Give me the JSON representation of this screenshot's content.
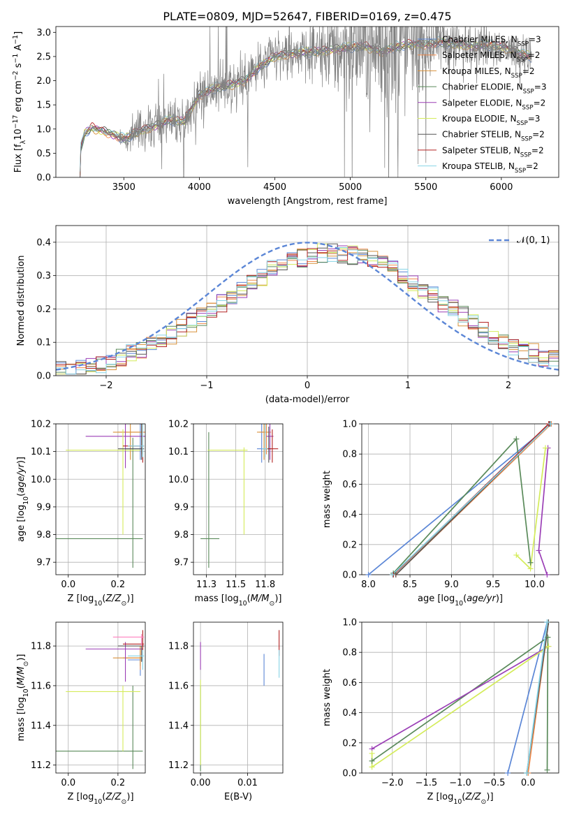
{
  "figure": {
    "title": "PLATE=0809, MJD=52647, FIBERID=0169, z=0.475"
  },
  "models": [
    {
      "label": "Chabrier MILES, N<sub>SSP</sub>=3",
      "color": "#5b86d6"
    },
    {
      "label": "Salpeter MILES, N<sub>SSP</sub>=2",
      "color": "#f08a4b"
    },
    {
      "label": "Kroupa MILES, N<sub>SSP</sub>=2",
      "color": "#d8913a"
    },
    {
      "label": "Chabrier ELODIE, N<sub>SSP</sub>=3",
      "color": "#5a8a5a"
    },
    {
      "label": "Salpeter ELODIE, N<sub>SSP</sub>=2",
      "color": "#9b3fb6"
    },
    {
      "label": "Kroupa ELODIE, N<sub>SSP</sub>=3",
      "color": "#d4ec5a"
    },
    {
      "label": "Chabrier STELIB, N<sub>SSP</sub>=2",
      "color": "#555555"
    },
    {
      "label": "Salpeter STELIB, N<sub>SSP</sub>=2",
      "color": "#b22222"
    },
    {
      "label": "Kroupa STELIB, N<sub>SSP</sub>=2",
      "color": "#87d4e6"
    }
  ],
  "chart_data": [
    {
      "id": "spectrum",
      "type": "line",
      "xlabel": "wavelength [Angstrom, rest frame]",
      "ylabel": "Flux [f<sub>λ</sub>10<sup>−17</sup> erg cm<sup>−2</sup> s<sup>−1</sup> A<sup>−1</sup>]",
      "xlim": [
        3050,
        6380
      ],
      "ylim": [
        0,
        3.12
      ],
      "xticks": [
        3500,
        4000,
        4500,
        5000,
        5500,
        6000
      ],
      "yticks": [
        0.0,
        0.5,
        1.0,
        1.5,
        2.0,
        2.5,
        3.0
      ],
      "data_color": "#808080",
      "x_range": [
        3210,
        6200
      ],
      "continuum_knots": [
        [
          3210,
          0.0
        ],
        [
          3215,
          0.6
        ],
        [
          3240,
          0.92
        ],
        [
          3290,
          1.02
        ],
        [
          3400,
          0.92
        ],
        [
          3500,
          0.8
        ],
        [
          3600,
          0.95
        ],
        [
          3700,
          1.05
        ],
        [
          3800,
          1.2
        ],
        [
          3900,
          1.15
        ],
        [
          4000,
          1.7
        ],
        [
          4100,
          1.85
        ],
        [
          4200,
          1.9
        ],
        [
          4300,
          2.0
        ],
        [
          4400,
          2.3
        ],
        [
          4500,
          2.5
        ],
        [
          4600,
          2.55
        ],
        [
          4700,
          2.6
        ],
        [
          4800,
          2.6
        ],
        [
          4900,
          2.65
        ],
        [
          5000,
          2.7
        ],
        [
          5100,
          2.7
        ],
        [
          5200,
          2.6
        ],
        [
          5300,
          2.7
        ],
        [
          5400,
          2.75
        ],
        [
          5500,
          2.75
        ],
        [
          5600,
          2.8
        ],
        [
          5700,
          2.75
        ],
        [
          5800,
          2.72
        ],
        [
          5900,
          2.75
        ],
        [
          6000,
          2.7
        ],
        [
          6100,
          2.6
        ],
        [
          6200,
          2.5
        ]
      ],
      "noise_knots": [
        [
          3210,
          0.02
        ],
        [
          3450,
          0.03
        ],
        [
          3550,
          0.3
        ],
        [
          3900,
          0.4
        ],
        [
          4000,
          0.35
        ],
        [
          4300,
          0.5
        ],
        [
          4700,
          0.3
        ],
        [
          4900,
          0.8
        ],
        [
          5300,
          1.2
        ],
        [
          5500,
          0.6
        ],
        [
          5800,
          0.3
        ],
        [
          6200,
          0.3
        ]
      ]
    },
    {
      "id": "residuals",
      "type": "histogram",
      "xlabel": "(data-model)/error",
      "ylabel": "Normed distribution",
      "xlim": [
        -2.5,
        2.5
      ],
      "ylim": [
        0,
        0.45
      ],
      "xticks": [
        -2,
        -1,
        0,
        1,
        2
      ],
      "yticks": [
        0.0,
        0.1,
        0.2,
        0.3,
        0.4
      ],
      "bins": [
        -2.5,
        2.5,
        50
      ],
      "reference": {
        "label": "𝒩(0, 1)",
        "color": "#5b86d6",
        "mean": 0,
        "sigma": 1
      }
    },
    {
      "id": "age-vs-Z",
      "type": "scatter",
      "xlabel": "Z [log<sub>10</sub>(<i>Z/Z</i><sub>⊙</sub>)]",
      "ylabel": "age  [log<sub>10</sub>(<i>age/yr</i>)]",
      "xlim": [
        -0.05,
        0.31
      ],
      "ylim": [
        9.655,
        10.2
      ],
      "xticks": [
        0.0,
        0.2
      ],
      "yticks": [
        9.7,
        9.8,
        9.9,
        10.0,
        10.1,
        10.2
      ],
      "points": [
        {
          "m": 0,
          "x": 0.29,
          "y": 10.11,
          "xlo": 0.23,
          "xhi": 0.3,
          "ylo": 10.07,
          "yhi": 10.2
        },
        {
          "m": 1,
          "x": 0.295,
          "y": 10.17,
          "xlo": 0.2,
          "xhi": 0.31,
          "ylo": 10.09,
          "yhi": 10.2
        },
        {
          "m": 2,
          "x": 0.25,
          "y": 10.17,
          "xlo": 0.18,
          "xhi": 0.3,
          "ylo": 10.07,
          "yhi": 10.2
        },
        {
          "m": 3,
          "x": 0.26,
          "y": 9.785,
          "xlo": -0.05,
          "xhi": 0.3,
          "ylo": 9.68,
          "yhi": 10.15
        },
        {
          "m": 4,
          "x": 0.23,
          "y": 10.155,
          "xlo": 0.07,
          "xhi": 0.31,
          "ylo": 10.04,
          "yhi": 10.2
        },
        {
          "m": 5,
          "x": 0.22,
          "y": 10.105,
          "xlo": -0.01,
          "xhi": 0.29,
          "ylo": 9.8,
          "yhi": 10.18
        },
        {
          "m": 6,
          "x": 0.295,
          "y": 10.11,
          "xlo": 0.2,
          "xhi": 0.305,
          "ylo": 10.07,
          "yhi": 10.2
        },
        {
          "m": 7,
          "x": 0.3,
          "y": 10.12,
          "xlo": 0.22,
          "xhi": 0.305,
          "ylo": 10.06,
          "yhi": 10.2
        },
        {
          "m": 8,
          "x": 0.3,
          "y": 10.12,
          "xlo": 0.24,
          "xhi": 0.305,
          "ylo": 10.08,
          "yhi": 10.2
        }
      ]
    },
    {
      "id": "age-vs-mass",
      "type": "scatter",
      "xlabel": "mass [log<sub>10</sub>(<i>M/M</i><sub>⊙</sub>)]",
      "ylabel": "",
      "xlim": [
        11.14,
        11.9
      ],
      "ylim": [
        9.655,
        10.2
      ],
      "xticks": [
        11.25,
        11.5,
        11.75
      ],
      "yticks": [
        9.7,
        9.8,
        9.9,
        10.0,
        10.1,
        10.2
      ],
      "points": [
        {
          "m": 0,
          "x": 11.72,
          "y": 10.11,
          "xlo": 11.68,
          "xhi": 11.75,
          "ylo": 10.06,
          "yhi": 10.2
        },
        {
          "m": 1,
          "x": 11.76,
          "y": 10.17,
          "xlo": 11.7,
          "xhi": 11.8,
          "ylo": 10.09,
          "yhi": 10.2
        },
        {
          "m": 2,
          "x": 11.74,
          "y": 10.17,
          "xlo": 11.68,
          "xhi": 11.77,
          "ylo": 10.07,
          "yhi": 10.2
        },
        {
          "m": 3,
          "x": 11.27,
          "y": 9.785,
          "xlo": 11.2,
          "xhi": 11.36,
          "ylo": 9.68,
          "yhi": 10.17
        },
        {
          "m": 4,
          "x": 11.79,
          "y": 10.155,
          "xlo": 11.76,
          "xhi": 11.82,
          "ylo": 10.07,
          "yhi": 10.2
        },
        {
          "m": 5,
          "x": 11.57,
          "y": 10.105,
          "xlo": 11.26,
          "xhi": 11.6,
          "ylo": 9.8,
          "yhi": 10.115
        },
        {
          "m": 6,
          "x": 11.78,
          "y": 10.11,
          "xlo": 11.75,
          "xhi": 11.8,
          "ylo": 10.06,
          "yhi": 10.19
        },
        {
          "m": 7,
          "x": 11.81,
          "y": 10.11,
          "xlo": 11.77,
          "xhi": 11.86,
          "ylo": 10.06,
          "yhi": 10.18
        },
        {
          "m": 8,
          "x": 11.75,
          "y": 10.11,
          "xlo": 11.72,
          "xhi": 11.77,
          "ylo": 10.08,
          "yhi": 10.2
        }
      ]
    },
    {
      "id": "weight-vs-age",
      "type": "line",
      "xlabel": "age  [log<sub>10</sub>(<i>age/yr</i>)]",
      "ylabel": "mass weight",
      "xlim": [
        7.92,
        10.29
      ],
      "ylim": [
        0,
        1.0
      ],
      "xticks": [
        8.0,
        8.5,
        9.0,
        9.5,
        10.0
      ],
      "yticks": [
        0.0,
        0.2,
        0.4,
        0.6,
        0.8,
        1.0
      ],
      "series": [
        {
          "m": 0,
          "x": [
            8.0,
            10.2
          ],
          "y": [
            0.0,
            1.0
          ]
        },
        {
          "m": 1,
          "x": [
            8.33,
            10.2
          ],
          "y": [
            0.0,
            1.0
          ]
        },
        {
          "m": 2,
          "x": [
            8.3,
            10.18
          ],
          "y": [
            0.0,
            1.0
          ]
        },
        {
          "m": 3,
          "x": [
            8.3,
            9.78,
            9.95
          ],
          "y": [
            0.01,
            0.9,
            0.08
          ]
        },
        {
          "m": 4,
          "x": [
            10.15,
            10.05,
            10.16
          ],
          "y": [
            0.0,
            0.16,
            0.84
          ]
        },
        {
          "m": 5,
          "x": [
            9.78,
            9.95,
            10.13
          ],
          "y": [
            0.13,
            0.04,
            0.84
          ]
        },
        {
          "m": 6,
          "x": [
            8.33,
            10.18
          ],
          "y": [
            0.0,
            1.0
          ]
        },
        {
          "m": 7,
          "x": [
            8.3,
            10.17
          ],
          "y": [
            0.0,
            1.0
          ]
        },
        {
          "m": 8,
          "x": [
            8.29,
            10.19
          ],
          "y": [
            0.0,
            1.0
          ]
        }
      ]
    },
    {
      "id": "mass-vs-Z",
      "type": "scatter",
      "xlabel": "Z [log<sub>10</sub>(<i>Z/Z</i><sub>⊙</sub>)]",
      "ylabel": "mass [log<sub>10</sub>(<i>M/M</i><sub>⊙</sub>)]",
      "xlim": [
        -0.05,
        0.31
      ],
      "ylim": [
        11.16,
        11.92
      ],
      "xticks": [
        0.0,
        0.2
      ],
      "yticks": [
        11.2,
        11.4,
        11.6,
        11.8
      ],
      "points": [
        {
          "m": 0,
          "x": 0.29,
          "y": 11.73,
          "xlo": 0.24,
          "xhi": 0.3,
          "ylo": 11.65,
          "yhi": 11.76
        },
        {
          "m": 1,
          "x": 0.29,
          "y": 11.74,
          "xlo": 0.22,
          "xhi": 0.3,
          "ylo": 11.68,
          "yhi": 11.8
        },
        {
          "m": 2,
          "x": 0.29,
          "y": 11.74,
          "xlo": 0.18,
          "xhi": 0.3,
          "ylo": 11.7,
          "yhi": 11.8
        },
        {
          "m": 3,
          "x": 0.26,
          "y": 11.27,
          "xlo": -0.05,
          "xhi": 0.3,
          "ylo": 11.18,
          "yhi": 11.6
        },
        {
          "m": 4,
          "x": 0.23,
          "y": 11.785,
          "xlo": 0.07,
          "xhi": 0.3,
          "ylo": 11.62,
          "yhi": 11.82
        },
        {
          "m": 5,
          "x": 0.22,
          "y": 11.57,
          "xlo": -0.01,
          "xhi": 0.29,
          "ylo": 11.27,
          "yhi": 11.6
        },
        {
          "m": 6,
          "x": 0.295,
          "y": 11.8,
          "xlo": 0.2,
          "xhi": 0.305,
          "ylo": 11.72,
          "yhi": 11.84
        },
        {
          "m": 7,
          "x": 0.3,
          "y": 11.81,
          "xlo": 0.22,
          "xhi": 0.305,
          "ylo": 11.72,
          "yhi": 11.88
        },
        {
          "m": 8,
          "x": 0.3,
          "y": 11.75,
          "xlo": 0.24,
          "xhi": 0.305,
          "ylo": 11.68,
          "yhi": 11.78
        },
        {
          "m": -1,
          "x": 0.295,
          "y": 11.845,
          "xlo": 0.18,
          "xhi": 0.305,
          "ylo": 11.8,
          "yhi": 11.86,
          "color": "#ff7fbf"
        }
      ]
    },
    {
      "id": "mass-vs-ebv",
      "type": "scatter",
      "xlabel": "E(B-V)",
      "ylabel": "",
      "xlim": [
        -0.0015,
        0.0175
      ],
      "ylim": [
        11.16,
        11.92
      ],
      "xticks": [
        0.0,
        0.01
      ],
      "yticks": [
        11.2,
        11.4,
        11.6,
        11.8
      ],
      "points": [
        {
          "m": 0,
          "x": 0.0135,
          "y": 11.7,
          "ylo": 11.6,
          "yhi": 11.76
        },
        {
          "m": 3,
          "x": 0.0,
          "y": 11.27,
          "ylo": 11.17,
          "yhi": 11.6
        },
        {
          "m": 4,
          "x": 0.0,
          "y": 11.78,
          "ylo": 11.68,
          "yhi": 11.82
        },
        {
          "m": 5,
          "x": 0.0,
          "y": 11.57,
          "ylo": 11.2,
          "yhi": 11.63
        },
        {
          "m": 7,
          "x": 0.0167,
          "y": 11.81,
          "ylo": 11.75,
          "yhi": 11.88
        },
        {
          "m": 8,
          "x": 0.0167,
          "y": 11.72,
          "ylo": 11.64,
          "yhi": 11.78
        }
      ]
    },
    {
      "id": "weight-vs-Z",
      "type": "line",
      "xlabel": "Z [log<sub>10</sub>(<i>Z/Z</i><sub>⊙</sub>)]",
      "ylabel": "mass weight",
      "xlim": [
        -2.45,
        0.45
      ],
      "ylim": [
        0,
        1.0
      ],
      "xticks": [
        -2.0,
        -1.5,
        -1.0,
        -0.5,
        0.0
      ],
      "yticks": [
        0.0,
        0.2,
        0.4,
        0.6,
        0.8,
        1.0
      ],
      "series": [
        {
          "m": 0,
          "x": [
            -0.3,
            0.28
          ],
          "y": [
            0.0,
            1.0
          ]
        },
        {
          "m": 1,
          "x": [
            0.0,
            0.3
          ],
          "y": [
            0.0,
            1.0
          ]
        },
        {
          "m": 3,
          "x": [
            -2.3,
            0.29,
            0.28
          ],
          "y": [
            0.08,
            0.9,
            0.02
          ]
        },
        {
          "m": 4,
          "x": [
            -2.3,
            0.3
          ],
          "y": [
            0.16,
            0.84
          ]
        },
        {
          "m": 5,
          "x": [
            -2.3,
            -2.3,
            0.3
          ],
          "y": [
            0.13,
            0.04,
            0.84
          ]
        },
        {
          "m": 6,
          "x": [
            -0.02,
            0.3
          ],
          "y": [
            0.0,
            1.0
          ]
        },
        {
          "m": 8,
          "x": [
            -0.02,
            0.28
          ],
          "y": [
            0.0,
            1.0
          ]
        }
      ]
    }
  ]
}
